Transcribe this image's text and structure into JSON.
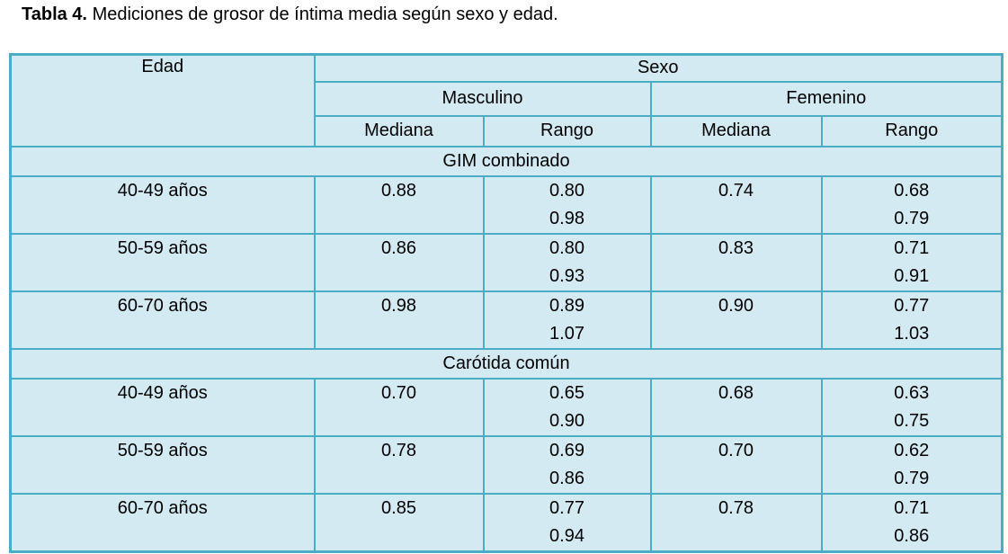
{
  "title": {
    "label": "Tabla 4.",
    "text": "Mediciones de grosor de íntima media según sexo y edad."
  },
  "colors": {
    "border": "#4bacc6",
    "cell_bg": "#d3eaf2",
    "highlight_bg": "#ffffff",
    "text": "#000000",
    "page_bg": "#ffffff"
  },
  "table": {
    "header": {
      "edad": "Edad",
      "sexo": "Sexo",
      "groups": [
        {
          "label": "Masculino",
          "white": true
        },
        {
          "label": "Femenino",
          "white": false
        }
      ],
      "subheaders": [
        "Mediana",
        "Rango",
        "Mediana",
        "Rango"
      ]
    },
    "sections": [
      {
        "title": "GIM combinado",
        "rows": [
          {
            "edad": "40-49 años",
            "cells": [
              {
                "lines": [
                  "0.88"
                ],
                "white": false
              },
              {
                "lines": [
                  "0.80",
                  "0.98"
                ],
                "white": false
              },
              {
                "lines": [
                  "0.74"
                ],
                "white": false
              },
              {
                "lines": [
                  "0.68",
                  "0.79"
                ],
                "white": false
              }
            ]
          },
          {
            "edad": "50-59 años",
            "cells": [
              {
                "lines": [
                  "0.86"
                ],
                "white": true
              },
              {
                "lines": [
                  "0.80",
                  "0.93"
                ],
                "white": false
              },
              {
                "lines": [
                  "0.83"
                ],
                "white": true
              },
              {
                "lines": [
                  "0.71",
                  "0.91"
                ],
                "white": false
              }
            ]
          },
          {
            "edad": "60-70 años",
            "cells": [
              {
                "lines": [
                  "0.98"
                ],
                "white": false
              },
              {
                "lines": [
                  "0.89",
                  "1.07"
                ],
                "white": false
              },
              {
                "lines": [
                  "0.90"
                ],
                "white": false
              },
              {
                "lines": [
                  "0.77",
                  "1.03"
                ],
                "white": false
              }
            ]
          }
        ]
      },
      {
        "title": "Carótida común",
        "rows": [
          {
            "edad": "40-49 años",
            "cells": [
              {
                "lines": [
                  "0.70"
                ],
                "white": false
              },
              {
                "lines": [
                  "0.65",
                  "0.90"
                ],
                "white": false
              },
              {
                "lines": [
                  "0.68"
                ],
                "white": false
              },
              {
                "lines": [
                  "0.63",
                  "0.75"
                ],
                "white": false
              }
            ]
          },
          {
            "edad": "50-59 años",
            "cells": [
              {
                "lines": [
                  "0.78"
                ],
                "white": true
              },
              {
                "lines": [
                  "0.69",
                  "0.86"
                ],
                "white": false
              },
              {
                "lines": [
                  "0.70"
                ],
                "white": true
              },
              {
                "lines": [
                  "0.62",
                  "0.79"
                ],
                "white": false
              }
            ]
          },
          {
            "edad": "60-70 años",
            "cells": [
              {
                "lines": [
                  "0.85"
                ],
                "white": false
              },
              {
                "lines": [
                  "0.77",
                  "0.94"
                ],
                "white": false
              },
              {
                "lines": [
                  "0.78"
                ],
                "white": false
              },
              {
                "lines": [
                  "0.71",
                  "0.86"
                ],
                "white": false
              }
            ]
          }
        ]
      }
    ]
  }
}
